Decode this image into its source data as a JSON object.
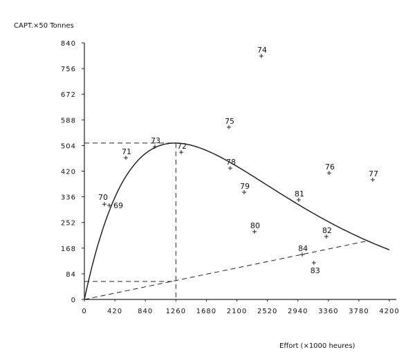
{
  "chart_data": {
    "type": "scatter",
    "title": "",
    "ylabel": "CAPT.×50 Tonnes",
    "xlabel": "Effort (×1000 heures)",
    "xlim": [
      0,
      4200
    ],
    "ylim": [
      0,
      840
    ],
    "x_ticks": [
      "0",
      "420",
      "840",
      "1260",
      "1680",
      "2100",
      "2520",
      "2940",
      "3360",
      "3780",
      "4200"
    ],
    "y_ticks": [
      "0",
      "84",
      "168",
      "252",
      "336",
      "420",
      "504",
      "588",
      "672",
      "756",
      "840"
    ],
    "grid": false,
    "points": [
      {
        "label": "69",
        "x": 343,
        "y": 308
      },
      {
        "label": "70",
        "x": 276,
        "y": 312
      },
      {
        "label": "71",
        "x": 571,
        "y": 464
      },
      {
        "label": "72",
        "x": 1333,
        "y": 482
      },
      {
        "label": "73",
        "x": 971,
        "y": 500
      },
      {
        "label": "74",
        "x": 2437,
        "y": 797
      },
      {
        "label": "75",
        "x": 1990,
        "y": 564
      },
      {
        "label": "76",
        "x": 3370,
        "y": 414
      },
      {
        "label": "77",
        "x": 3970,
        "y": 392
      },
      {
        "label": "78",
        "x": 2008,
        "y": 430
      },
      {
        "label": "79",
        "x": 2200,
        "y": 351
      },
      {
        "label": "80",
        "x": 2342,
        "y": 222
      },
      {
        "label": "81",
        "x": 2951,
        "y": 326
      },
      {
        "label": "82",
        "x": 3332,
        "y": 206
      },
      {
        "label": "83",
        "x": 3160,
        "y": 120
      },
      {
        "label": "84",
        "x": 3000,
        "y": 147
      }
    ],
    "curve": {
      "model": "fox",
      "effort_at_max": 1250,
      "max_catch": 512,
      "x_range": [
        0,
        4200
      ]
    },
    "cost_line": {
      "from": [
        0,
        0
      ],
      "to": [
        3905,
        192
      ]
    },
    "reference_lines": {
      "max_catch_y": 512,
      "effort_x": 1200,
      "cost_at_effort_y": 59
    },
    "colors": {
      "ink": "#111111",
      "background": "#ffffff"
    }
  }
}
